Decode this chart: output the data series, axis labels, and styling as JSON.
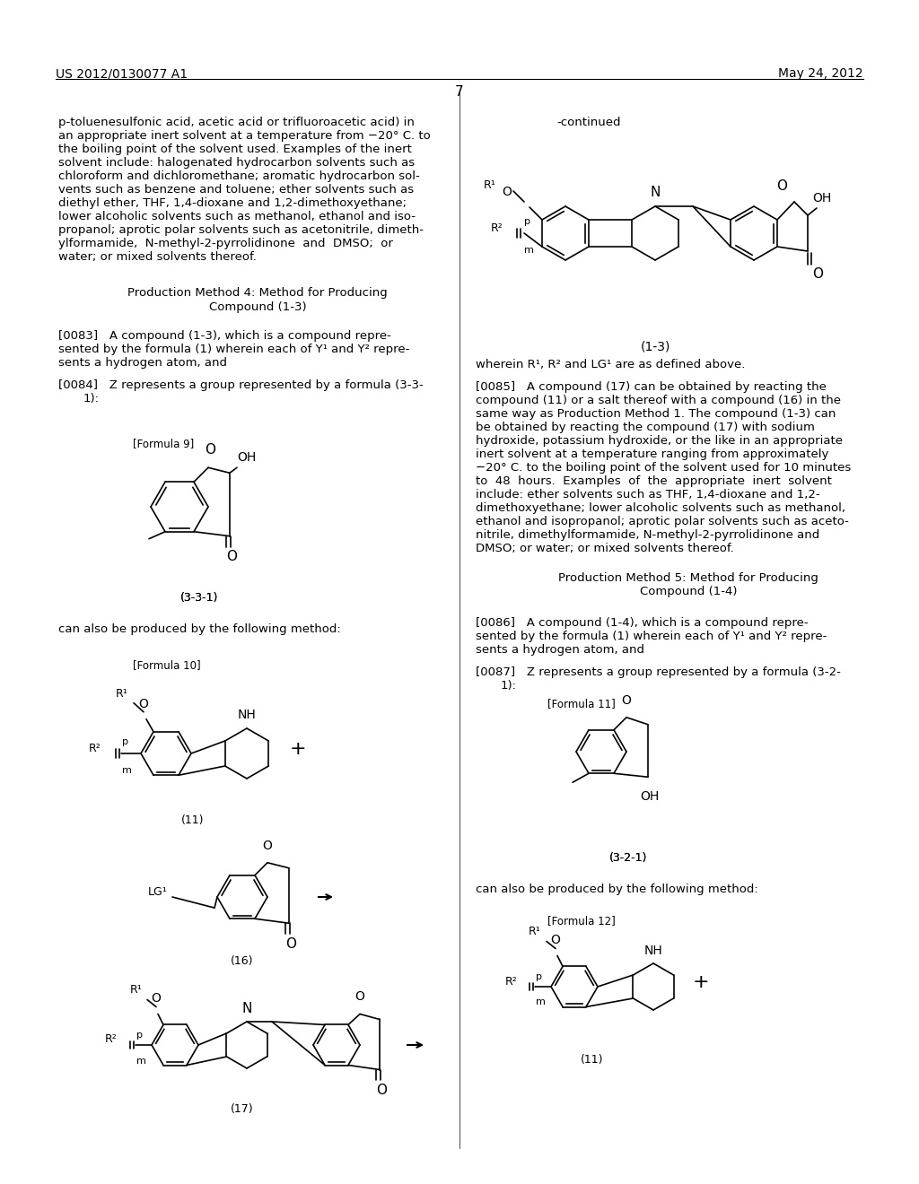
{
  "background_color": "#ffffff",
  "page_number": "7",
  "header_left": "US 2012/0130077 A1",
  "header_right": "May 24, 2012"
}
